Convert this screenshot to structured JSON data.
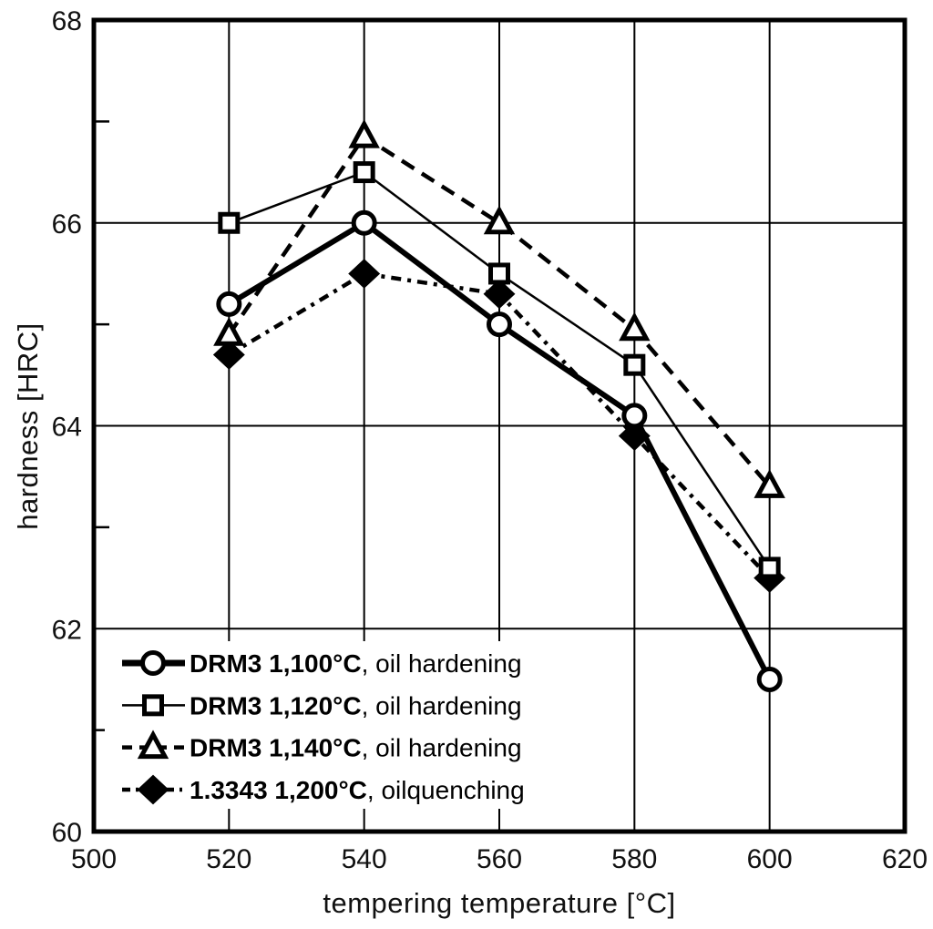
{
  "figure": {
    "background": "#ffffff",
    "ink": "#000000"
  },
  "chart_data": {
    "type": "line",
    "title": "",
    "xlabel": "tempering temperature [°C]",
    "ylabel": "hardness [HRC]",
    "xlim": [
      500,
      620
    ],
    "ylim": [
      60,
      68
    ],
    "x_ticks": [
      500,
      520,
      540,
      560,
      580,
      600,
      620
    ],
    "y_ticks": [
      60,
      62,
      64,
      66,
      68
    ],
    "y_minor_ticks": [
      61,
      63,
      65,
      67
    ],
    "grid": true,
    "legend_position": "lower-left",
    "x": [
      520,
      540,
      560,
      580,
      600
    ],
    "series": [
      {
        "name": "DRM3 1,100°C",
        "legend_suffix": ",  oil hardening",
        "marker": "circle",
        "marker_fill": "open",
        "line": "solid-thick",
        "values": [
          65.2,
          66.0,
          65.0,
          64.1,
          61.5
        ]
      },
      {
        "name": "DRM3 1,120°C",
        "legend_suffix": ",  oil hardening",
        "marker": "square",
        "marker_fill": "open",
        "line": "solid-thin",
        "values": [
          66.0,
          66.5,
          65.5,
          64.6,
          62.6
        ]
      },
      {
        "name": "DRM3 1,140°C",
        "legend_suffix": ",  oil hardening",
        "marker": "triangle",
        "marker_fill": "open",
        "line": "dashed",
        "values": [
          64.9,
          66.85,
          66.0,
          64.95,
          63.4
        ]
      },
      {
        "name": "1.3343 1,200°C",
        "legend_suffix": ", oilquenching",
        "marker": "diamond",
        "marker_fill": "filled",
        "line": "dash-dot",
        "values": [
          64.7,
          65.5,
          65.3,
          63.9,
          62.5
        ]
      }
    ]
  }
}
